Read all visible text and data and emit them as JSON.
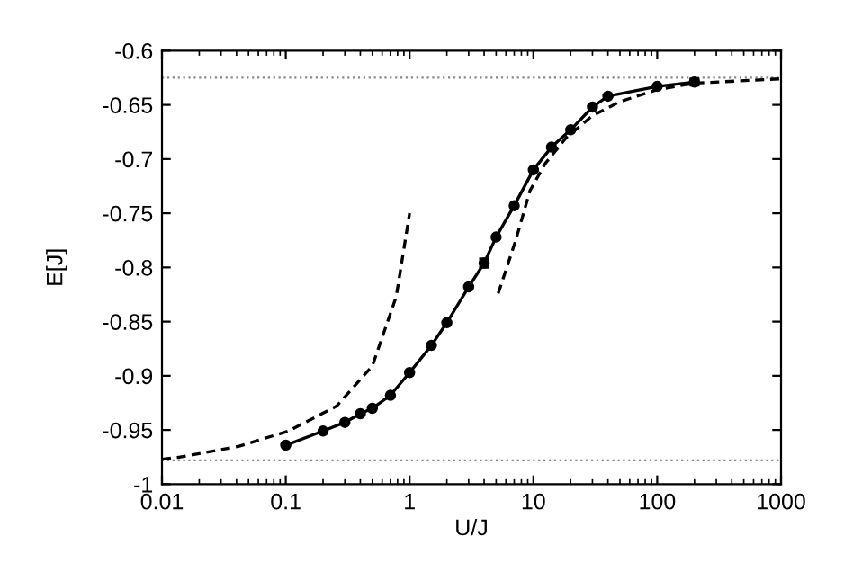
{
  "chart_data": {
    "type": "line",
    "xlabel": "U/J",
    "ylabel": "E[J]",
    "log": "x",
    "xlim": [
      0.01,
      1000
    ],
    "xticks": [
      0.01,
      0.1,
      1,
      10,
      100,
      1000
    ],
    "ylim": [
      -1,
      -0.6
    ],
    "yticks": [
      -1,
      -0.95,
      -0.9,
      -0.85,
      -0.8,
      -0.75,
      -0.7,
      -0.65,
      -0.6
    ],
    "grid": false,
    "legend": false,
    "series": [
      {
        "color": "#000000",
        "marker": "circle",
        "line_style": "solid",
        "x": [
          0.1,
          0.2,
          0.3,
          0.4,
          0.5,
          0.7,
          1,
          1.5,
          2,
          3,
          4,
          5,
          7,
          10,
          14,
          20,
          30,
          40,
          100,
          200
        ],
        "values": [
          -0.964,
          -0.951,
          -0.943,
          -0.935,
          -0.93,
          -0.918,
          -0.897,
          -0.872,
          -0.851,
          -0.818,
          -0.796,
          -0.772,
          -0.743,
          -0.71,
          -0.689,
          -0.673,
          -0.652,
          -0.642,
          -0.633,
          -0.629
        ],
        "errors": [
          null,
          null,
          null,
          null,
          null,
          null,
          null,
          null,
          null,
          null,
          0.004,
          null,
          null,
          null,
          null,
          null,
          null,
          null,
          null,
          0.003
        ]
      },
      {
        "color": "#000000",
        "marker": "none",
        "line_style": "dashed",
        "x": [
          0.01,
          0.014,
          0.042,
          0.105,
          0.257,
          0.5,
          0.78,
          1
        ],
        "values": [
          -0.977,
          -0.975,
          -0.965,
          -0.951,
          -0.928,
          -0.891,
          -0.827,
          -0.75
        ]
      },
      {
        "color": "#000000",
        "marker": "none",
        "line_style": "dashed",
        "x": [
          5.2,
          7.2,
          9.4,
          12.5,
          18.5,
          30,
          50,
          100,
          200,
          1000
        ],
        "values": [
          -0.824,
          -0.775,
          -0.729,
          -0.704,
          -0.68,
          -0.66,
          -0.647,
          -0.636,
          -0.63,
          -0.626
        ]
      }
    ],
    "ref_lines": [
      {
        "axis": "y",
        "value": -0.625,
        "color": "#888888",
        "line_style": "dotted"
      },
      {
        "axis": "y",
        "value": -0.978,
        "color": "#888888",
        "line_style": "dotted"
      }
    ]
  }
}
